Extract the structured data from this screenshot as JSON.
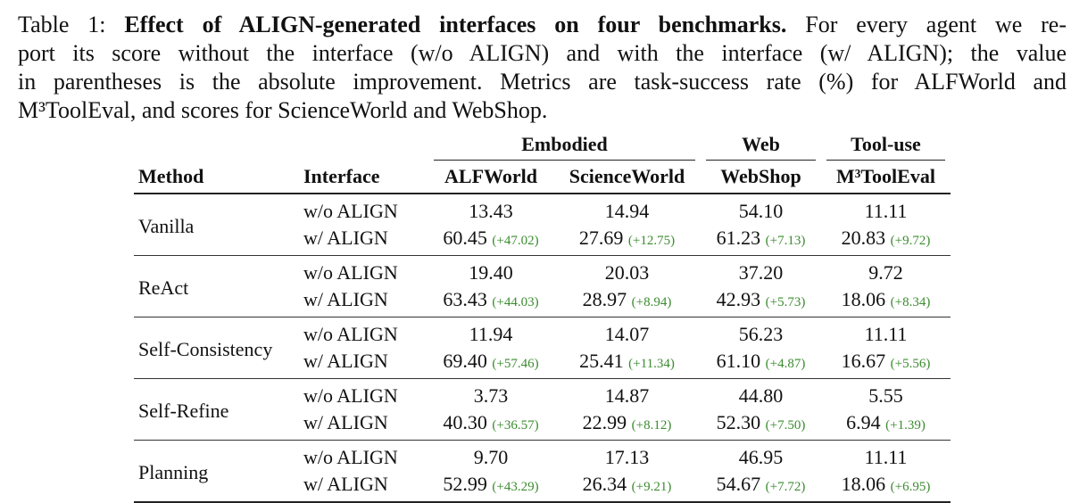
{
  "caption": {
    "label": "Table 1:",
    "title": "Effect of ALIGN-generated interfaces on four benchmarks.",
    "lines": [
      "For every agent we re-",
      "port its score without the interface (w/o ALIGN) and with the interface (w/ ALIGN); the value",
      "in parentheses is the absolute improvement. Metrics are task-success rate (%) for ALFWorld and",
      "M³ToolEval, and scores for ScienceWorld and WebShop."
    ]
  },
  "table": {
    "groups": [
      "Embodied",
      "Web",
      "Tool-use"
    ],
    "headers": [
      "Method",
      "Interface",
      "ALFWorld",
      "ScienceWorld",
      "WebShop",
      "M³ToolEval"
    ],
    "rows": [
      {
        "method": "Vanilla",
        "sub": [
          {
            "interface": "w/o ALIGN",
            "values": [
              "13.43",
              "14.94",
              "54.10",
              "11.11"
            ]
          },
          {
            "interface": "w/ ALIGN",
            "values": [
              "60.45",
              "27.69",
              "61.23",
              "20.83"
            ],
            "gains": [
              "(+47.02)",
              "(+12.75)",
              "(+7.13)",
              "(+9.72)"
            ]
          }
        ]
      },
      {
        "method": "ReAct",
        "sub": [
          {
            "interface": "w/o ALIGN",
            "values": [
              "19.40",
              "20.03",
              "37.20",
              "9.72"
            ]
          },
          {
            "interface": "w/ ALIGN",
            "values": [
              "63.43",
              "28.97",
              "42.93",
              "18.06"
            ],
            "gains": [
              "(+44.03)",
              "(+8.94)",
              "(+5.73)",
              "(+8.34)"
            ]
          }
        ]
      },
      {
        "method": "Self-Consistency",
        "sub": [
          {
            "interface": "w/o ALIGN",
            "values": [
              "11.94",
              "14.07",
              "56.23",
              "11.11"
            ]
          },
          {
            "interface": "w/ ALIGN",
            "values": [
              "69.40",
              "25.41",
              "61.10",
              "16.67"
            ],
            "gains": [
              "(+57.46)",
              "(+11.34)",
              "(+4.87)",
              "(+5.56)"
            ]
          }
        ]
      },
      {
        "method": "Self-Refine",
        "sub": [
          {
            "interface": "w/o ALIGN",
            "values": [
              "3.73",
              "14.87",
              "44.80",
              "5.55"
            ]
          },
          {
            "interface": "w/ ALIGN",
            "values": [
              "40.30",
              "22.99",
              "52.30",
              "6.94"
            ],
            "gains": [
              "(+36.57)",
              "(+8.12)",
              "(+7.50)",
              "(+1.39)"
            ]
          }
        ]
      },
      {
        "method": "Planning",
        "sub": [
          {
            "interface": "w/o ALIGN",
            "values": [
              "9.70",
              "17.13",
              "46.95",
              "11.11"
            ]
          },
          {
            "interface": "w/ ALIGN",
            "values": [
              "52.99",
              "26.34",
              "54.67",
              "18.06"
            ],
            "gains": [
              "(+43.29)",
              "(+9.21)",
              "(+7.72)",
              "(+6.95)"
            ]
          }
        ]
      }
    ]
  }
}
